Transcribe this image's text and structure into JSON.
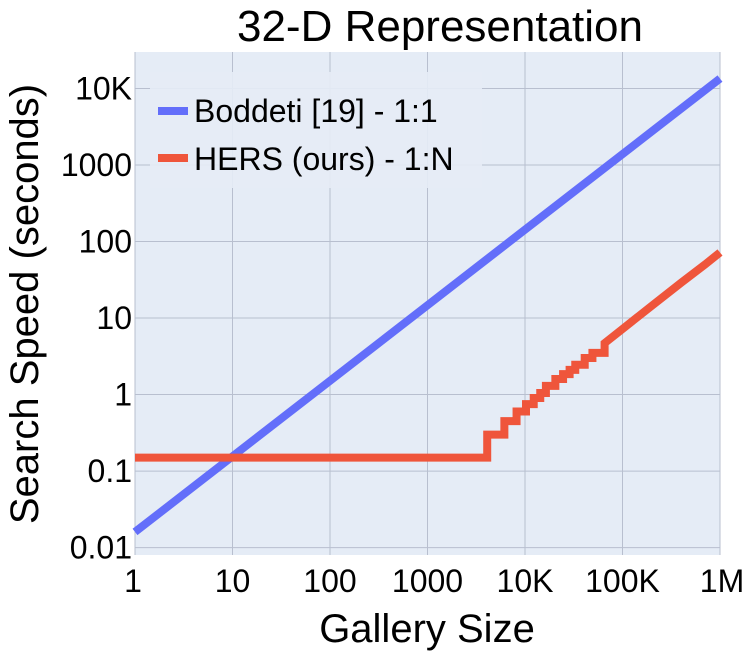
{
  "chart_data": {
    "type": "line",
    "title": "32-D Representation",
    "xlabel": "Gallery Size",
    "ylabel": "Search Speed (seconds)",
    "x_scale": "log",
    "y_scale": "log",
    "xlim": [
      1,
      1000000
    ],
    "ylim": [
      0.008,
      30000
    ],
    "grid": true,
    "legend_position": "top-left",
    "x_ticks": [
      {
        "value": 1,
        "label": "1"
      },
      {
        "value": 10,
        "label": "10"
      },
      {
        "value": 100,
        "label": "100"
      },
      {
        "value": 1000,
        "label": "1000"
      },
      {
        "value": 10000,
        "label": "10K"
      },
      {
        "value": 100000,
        "label": "100K"
      },
      {
        "value": 1000000,
        "label": "1M"
      }
    ],
    "y_ticks": [
      {
        "value": 0.01,
        "label": "0.01"
      },
      {
        "value": 0.1,
        "label": "0.1"
      },
      {
        "value": 1,
        "label": "1"
      },
      {
        "value": 10,
        "label": "10"
      },
      {
        "value": 100,
        "label": "100"
      },
      {
        "value": 1000,
        "label": "1000"
      },
      {
        "value": 10000,
        "label": "10K"
      }
    ],
    "series": [
      {
        "name": "Boddeti [19] - 1:1",
        "color": "#636efa",
        "step": false,
        "x": [
          1,
          1000000
        ],
        "y": [
          0.016,
          13500
        ]
      },
      {
        "name": "HERS (ours) - 1:N",
        "color": "#ef553b",
        "step": true,
        "x": [
          1,
          4096,
          4096,
          6144,
          6144,
          8192,
          8192,
          10240,
          10240,
          12288,
          12288,
          14336,
          14336,
          16384,
          16384,
          20480,
          20480,
          24576,
          24576,
          28672,
          28672,
          32768,
          32768,
          40960,
          40960,
          49152,
          49152,
          65536,
          65536,
          100000,
          200000,
          400000,
          700000,
          1000000
        ],
        "y": [
          0.15,
          0.15,
          0.3,
          0.3,
          0.45,
          0.45,
          0.6,
          0.6,
          0.75,
          0.75,
          0.9,
          0.9,
          1.05,
          1.05,
          1.3,
          1.3,
          1.6,
          1.6,
          1.85,
          1.85,
          2.1,
          2.1,
          2.45,
          2.45,
          3.0,
          3.0,
          3.5,
          3.5,
          4.7,
          7.2,
          14.5,
          29,
          50,
          72
        ]
      }
    ]
  }
}
